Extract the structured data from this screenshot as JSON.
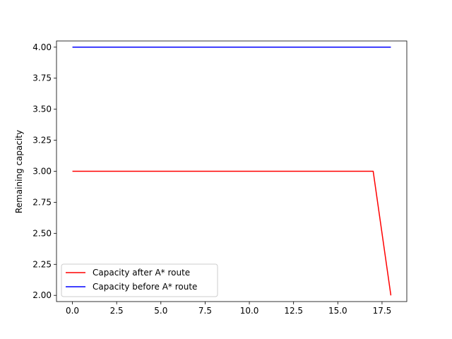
{
  "chart_data": {
    "type": "line",
    "title": "",
    "xlabel": "",
    "ylabel": "Remaining capacity",
    "xlim": [
      -0.9,
      18.9
    ],
    "ylim": [
      1.95,
      4.05
    ],
    "x_ticks": [
      0.0,
      2.5,
      5.0,
      7.5,
      10.0,
      12.5,
      15.0,
      17.5
    ],
    "x_tick_labels": [
      "0.0",
      "2.5",
      "5.0",
      "7.5",
      "10.0",
      "12.5",
      "15.0",
      "17.5"
    ],
    "y_ticks": [
      2.0,
      2.25,
      2.5,
      2.75,
      3.0,
      3.25,
      3.5,
      3.75,
      4.0
    ],
    "y_tick_labels": [
      "2.00",
      "2.25",
      "2.50",
      "2.75",
      "3.00",
      "3.25",
      "3.50",
      "3.75",
      "4.00"
    ],
    "grid": false,
    "legend_position": "lower-left",
    "series": [
      {
        "name": "Capacity after A* route",
        "color": "#ff0000",
        "x": [
          0,
          1,
          2,
          3,
          4,
          5,
          6,
          7,
          8,
          9,
          10,
          11,
          12,
          13,
          14,
          15,
          16,
          17,
          18
        ],
        "y": [
          3,
          3,
          3,
          3,
          3,
          3,
          3,
          3,
          3,
          3,
          3,
          3,
          3,
          3,
          3,
          3,
          3,
          3,
          2
        ]
      },
      {
        "name": "Capacity before A* route",
        "color": "#0000ff",
        "x": [
          0,
          1,
          2,
          3,
          4,
          5,
          6,
          7,
          8,
          9,
          10,
          11,
          12,
          13,
          14,
          15,
          16,
          17,
          18
        ],
        "y": [
          4,
          4,
          4,
          4,
          4,
          4,
          4,
          4,
          4,
          4,
          4,
          4,
          4,
          4,
          4,
          4,
          4,
          4,
          4
        ]
      }
    ]
  }
}
